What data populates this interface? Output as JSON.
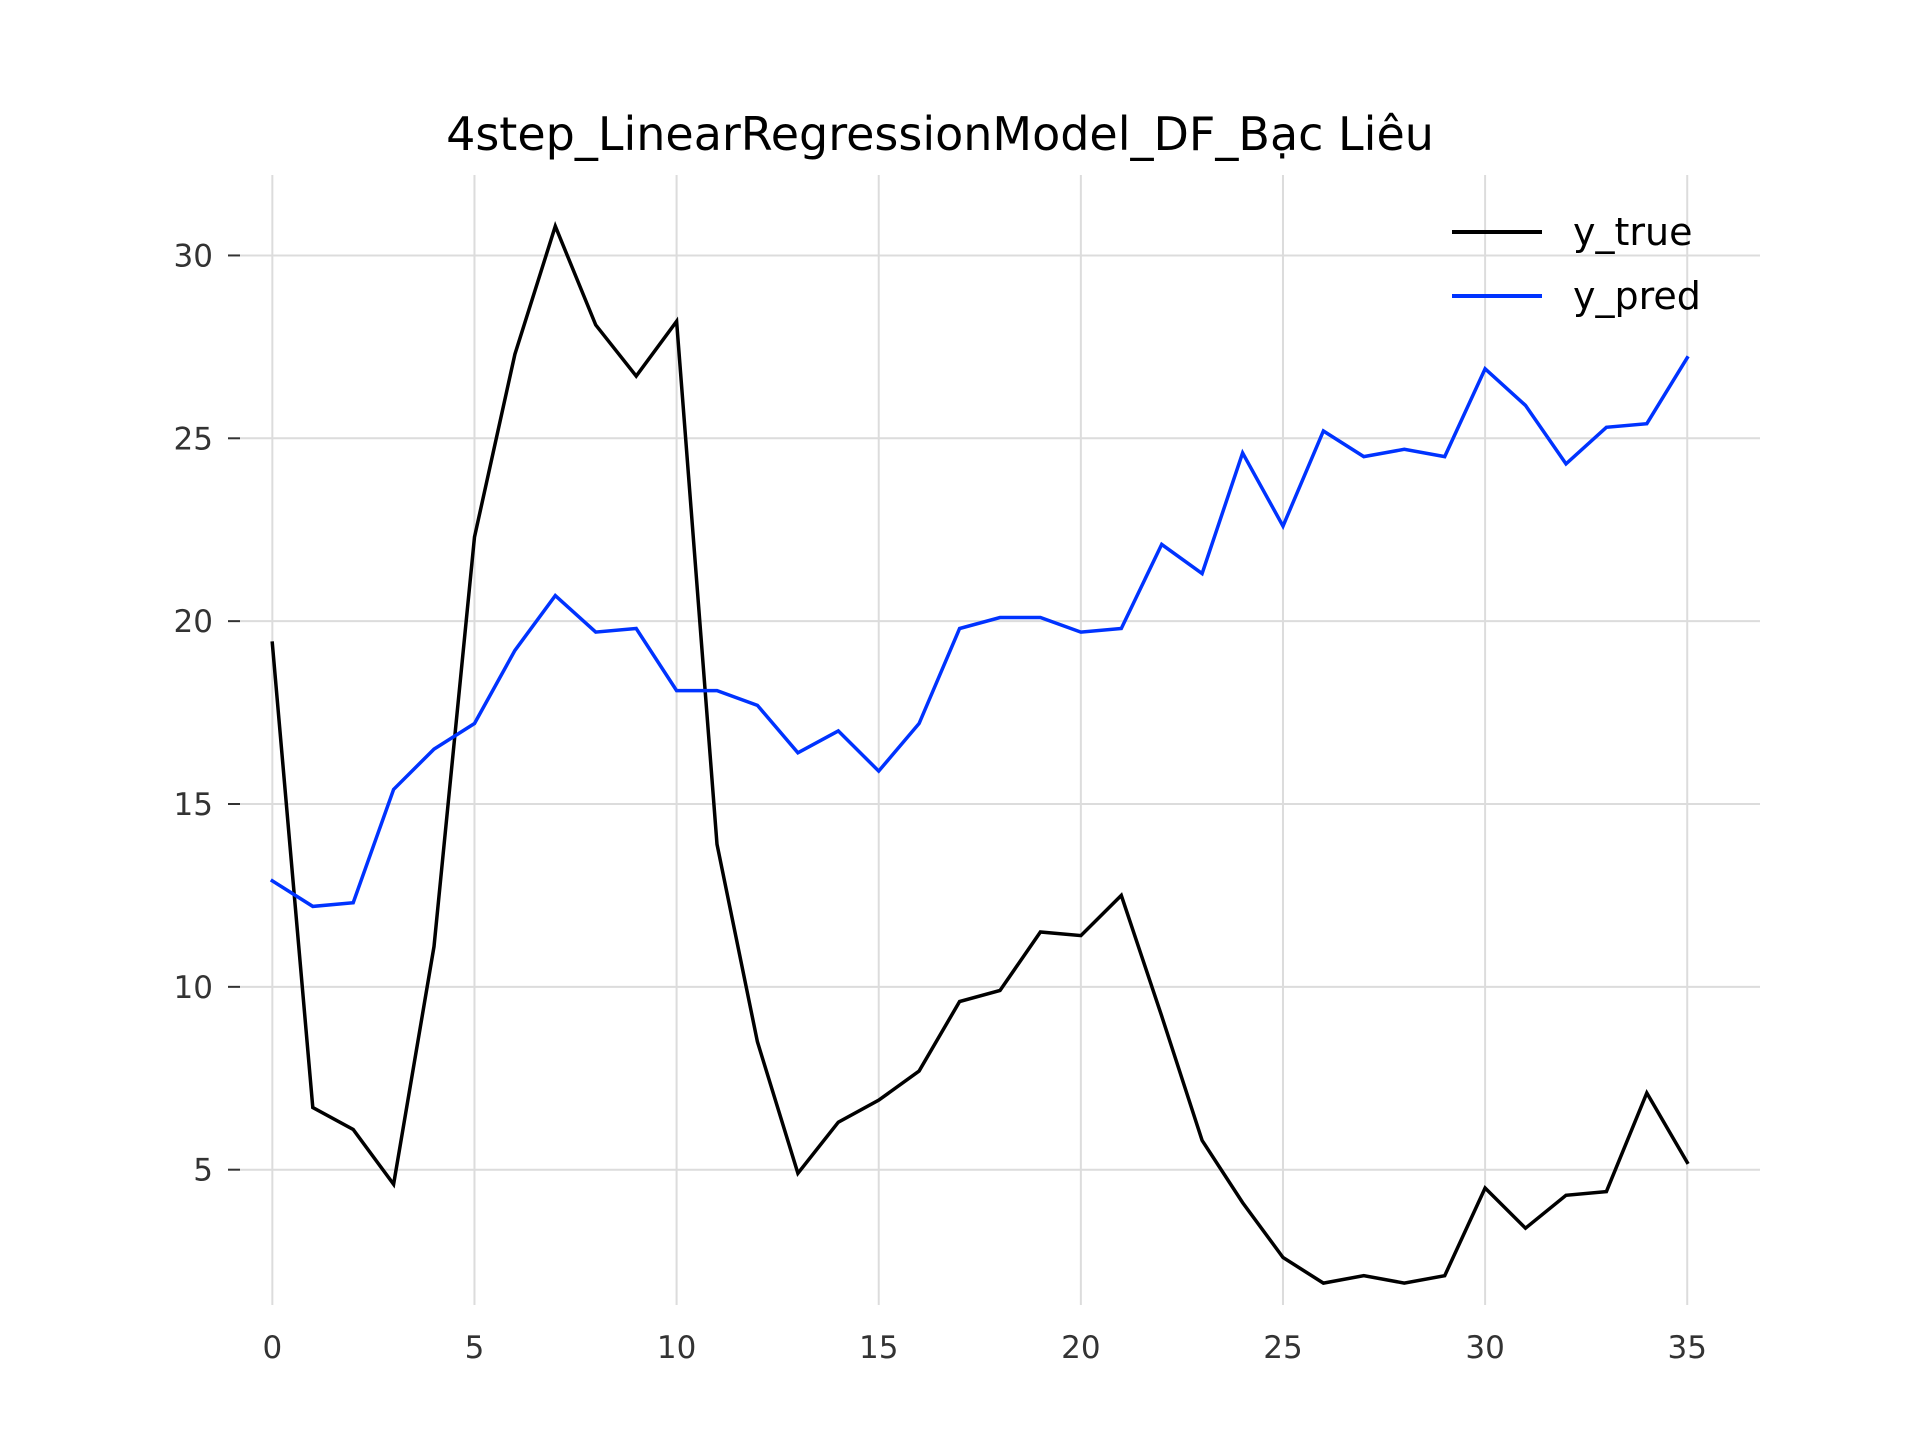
{
  "chart_data": {
    "type": "line",
    "title": "4step_LinearRegressionModel_DF_Bạc Liêu",
    "xlabel": "",
    "ylabel": "",
    "x": [
      0,
      1,
      2,
      3,
      4,
      5,
      6,
      7,
      8,
      9,
      10,
      11,
      12,
      13,
      14,
      15,
      16,
      17,
      18,
      19,
      20,
      21,
      22,
      23,
      24,
      25,
      26,
      27,
      28,
      29,
      30,
      31,
      32,
      33,
      34,
      35
    ],
    "xlim": [
      -0.8,
      36.8
    ],
    "ylim": [
      1.3,
      32.2
    ],
    "xticks": [
      0,
      5,
      10,
      15,
      20,
      25,
      30,
      35
    ],
    "yticks": [
      5,
      10,
      15,
      20,
      25,
      30
    ],
    "grid": true,
    "legend": "top-right",
    "series": [
      {
        "name": "y_true",
        "color": "#000000",
        "values": [
          19.4,
          6.7,
          6.1,
          4.6,
          11.1,
          22.3,
          27.3,
          30.8,
          28.1,
          26.7,
          28.2,
          13.9,
          8.5,
          4.9,
          6.3,
          6.9,
          7.7,
          9.6,
          9.9,
          11.5,
          11.4,
          12.5,
          9.2,
          5.8,
          4.1,
          2.6,
          1.9,
          2.1,
          1.9,
          2.1,
          4.5,
          3.4,
          4.3,
          4.4,
          7.1,
          5.2
        ]
      },
      {
        "name": "y_pred",
        "color": "#0033ff",
        "values": [
          12.9,
          12.2,
          12.3,
          15.4,
          16.5,
          17.2,
          19.2,
          20.7,
          19.7,
          19.8,
          18.1,
          18.1,
          17.7,
          16.4,
          17.0,
          15.9,
          17.2,
          19.8,
          20.1,
          20.1,
          19.7,
          19.8,
          22.1,
          21.3,
          24.6,
          22.6,
          25.2,
          24.5,
          24.7,
          24.5,
          26.9,
          25.9,
          24.3,
          25.3,
          25.4,
          27.2
        ]
      }
    ]
  }
}
